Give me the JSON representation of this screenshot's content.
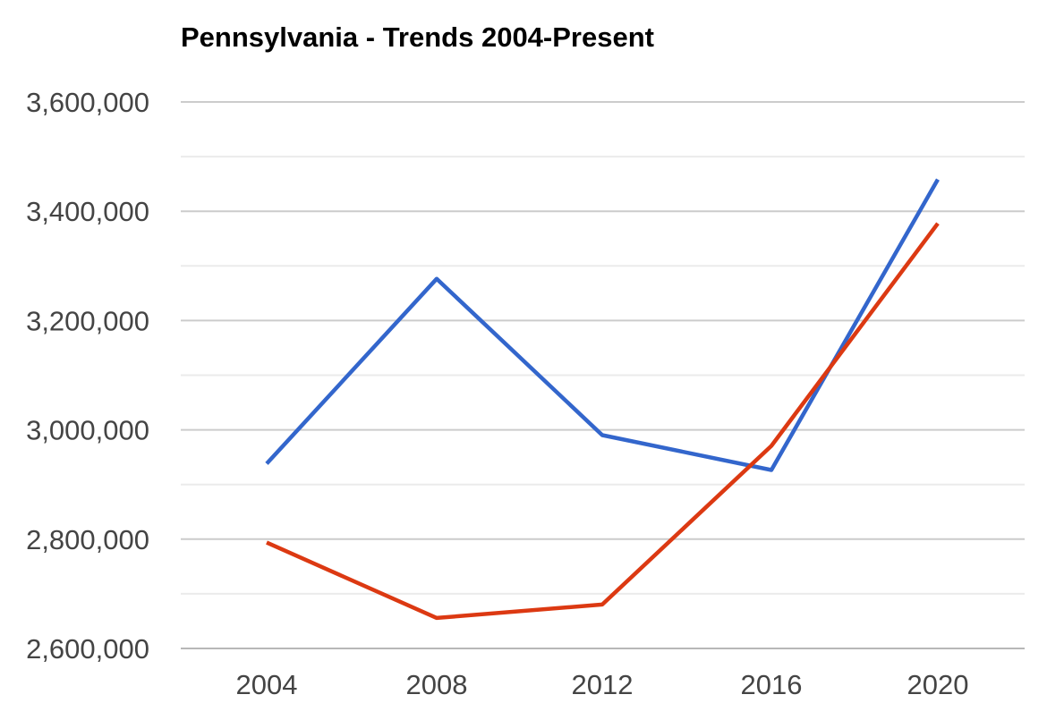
{
  "chart_data": {
    "type": "line",
    "title": "Pennsylvania - Trends 2004-Present",
    "xlabel": "",
    "ylabel": "",
    "categories": [
      "2004",
      "2008",
      "2012",
      "2016",
      "2020"
    ],
    "ylim": [
      2600000,
      3600000
    ],
    "y_ticks": [
      "2,600,000",
      "2,800,000",
      "3,000,000",
      "3,200,000",
      "3,400,000",
      "3,600,000"
    ],
    "y_tick_values": [
      2600000,
      2800000,
      3000000,
      3200000,
      3400000,
      3600000
    ],
    "grid": true,
    "minor_grid": true,
    "legend": "none",
    "series": [
      {
        "color": "#3366cc",
        "values": [
          2938095,
          3276363,
          2990274,
          2926441,
          3458229
        ]
      },
      {
        "color": "#dc3912",
        "values": [
          2793847,
          2655885,
          2680434,
          2970733,
          3377674
        ]
      }
    ]
  }
}
